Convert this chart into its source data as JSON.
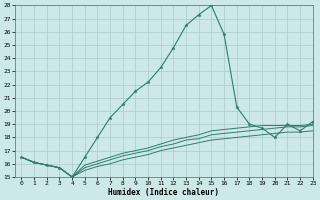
{
  "xlabel": "Humidex (Indice chaleur)",
  "ylabel": "",
  "bg_color": "#cce8e8",
  "grid_color": "#aacccc",
  "line_color": "#2e7d6e",
  "xlim": [
    -0.5,
    23
  ],
  "ylim": [
    15,
    28
  ],
  "yticks": [
    15,
    16,
    17,
    18,
    19,
    20,
    21,
    22,
    23,
    24,
    25,
    26,
    27,
    28
  ],
  "xticks": [
    0,
    1,
    2,
    3,
    4,
    5,
    6,
    7,
    8,
    9,
    10,
    11,
    12,
    13,
    14,
    15,
    16,
    17,
    18,
    19,
    20,
    21,
    22,
    23
  ],
  "series1_x": [
    0,
    1,
    2,
    3,
    4,
    5,
    6,
    7,
    8,
    9,
    10,
    11,
    12,
    13,
    14,
    15,
    16,
    17,
    18,
    19,
    20,
    21,
    22,
    23
  ],
  "series1_y": [
    16.5,
    16.1,
    15.9,
    15.7,
    15.0,
    16.5,
    18.0,
    19.5,
    20.5,
    21.5,
    22.2,
    23.3,
    24.8,
    26.5,
    27.3,
    28.0,
    25.8,
    20.3,
    19.0,
    18.7,
    18.0,
    19.0,
    18.5,
    19.2
  ],
  "series2_x": [
    0,
    1,
    2,
    3,
    4,
    5,
    6,
    7,
    8,
    9,
    10,
    11,
    12,
    13,
    14,
    15,
    16,
    17,
    18,
    19,
    20,
    21,
    22,
    23
  ],
  "series2_y": [
    16.5,
    16.1,
    15.9,
    15.7,
    15.0,
    15.9,
    16.2,
    16.5,
    16.8,
    17.0,
    17.2,
    17.5,
    17.8,
    18.0,
    18.2,
    18.5,
    18.6,
    18.7,
    18.8,
    18.9,
    18.9,
    18.9,
    18.9,
    19.0
  ],
  "series3_x": [
    0,
    1,
    2,
    3,
    4,
    5,
    6,
    7,
    8,
    9,
    10,
    11,
    12,
    13,
    14,
    15,
    16,
    17,
    18,
    19,
    20,
    21,
    22,
    23
  ],
  "series3_y": [
    16.5,
    16.1,
    15.9,
    15.7,
    15.0,
    15.7,
    16.0,
    16.3,
    16.6,
    16.8,
    17.0,
    17.3,
    17.5,
    17.8,
    17.9,
    18.2,
    18.3,
    18.4,
    18.5,
    18.6,
    18.7,
    18.8,
    18.8,
    18.9
  ],
  "series4_x": [
    0,
    1,
    2,
    3,
    4,
    5,
    6,
    7,
    8,
    9,
    10,
    11,
    12,
    13,
    14,
    15,
    16,
    17,
    18,
    19,
    20,
    21,
    22,
    23
  ],
  "series4_y": [
    16.5,
    16.1,
    15.9,
    15.7,
    15.0,
    15.5,
    15.8,
    16.0,
    16.3,
    16.5,
    16.7,
    17.0,
    17.2,
    17.4,
    17.6,
    17.8,
    17.9,
    18.0,
    18.1,
    18.2,
    18.3,
    18.4,
    18.4,
    18.5
  ]
}
